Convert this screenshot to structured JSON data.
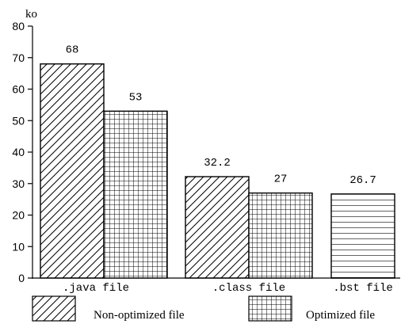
{
  "chart_data": {
    "type": "bar",
    "ylabel": "ko",
    "ylim": [
      0,
      80
    ],
    "yticks": [
      0,
      10,
      20,
      30,
      40,
      50,
      60,
      70,
      80
    ],
    "categories": [
      ".java file",
      ".class file",
      ".bst file"
    ],
    "series": [
      {
        "name": "Non-optimized file",
        "pattern": "diagonal",
        "values": [
          68,
          32.2,
          null
        ]
      },
      {
        "name": "Optimized file",
        "pattern": "grid",
        "values": [
          53,
          27,
          null
        ]
      },
      {
        "name": "",
        "pattern": "horizontal",
        "values": [
          null,
          null,
          26.7
        ]
      }
    ],
    "data_labels": [
      {
        "category": ".java file",
        "series": "Non-optimized file",
        "text": "68"
      },
      {
        "category": ".java file",
        "series": "Optimized file",
        "text": "53"
      },
      {
        "category": ".class file",
        "series": "Non-optimized file",
        "text": "32.2"
      },
      {
        "category": ".class file",
        "series": "Optimized file",
        "text": "27"
      },
      {
        "category": ".bst file",
        "series": "",
        "text": "26.7"
      }
    ],
    "legend": [
      {
        "label": "Non-optimized file",
        "pattern": "diagonal"
      },
      {
        "label": "Optimized file",
        "pattern": "grid"
      }
    ],
    "legend_position": "bottom",
    "grid": false
  }
}
